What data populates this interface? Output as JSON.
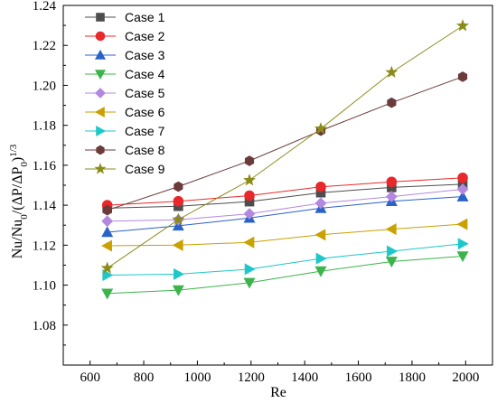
{
  "chart_data": {
    "type": "line",
    "title": "",
    "xlabel": "Re",
    "ylabel": "Nu/Nu₀/(ΔP/ΔP₀)¹ᐟ³",
    "ylabel_parts": {
      "a": "Nu/Nu",
      "a_sub": "0",
      "b": "/(ΔP/ΔP",
      "b_sub": "0",
      "c": ")",
      "c_sup": "1/3"
    },
    "xlim": [
      500,
      2100
    ],
    "ylim": [
      1.06,
      1.24
    ],
    "xticks": [
      600,
      800,
      1000,
      1200,
      1400,
      1600,
      1800,
      2000
    ],
    "yticks": [
      1.08,
      1.1,
      1.12,
      1.14,
      1.16,
      1.18,
      1.2,
      1.22,
      1.24
    ],
    "ytick_labels": [
      "1.08",
      "1.10",
      "1.12",
      "1.14",
      "1.16",
      "1.18",
      "1.20",
      "1.22",
      "1.24"
    ],
    "x": [
      664,
      929,
      1194,
      1460,
      1724,
      1989
    ],
    "legend_position": "top-left",
    "grid": false,
    "series": [
      {
        "name": "Case 1",
        "marker": "square",
        "color": "#4d4d4d",
        "values": [
          1.1385,
          1.1395,
          1.1418,
          1.1463,
          1.1489,
          1.1505
        ]
      },
      {
        "name": "Case 2",
        "marker": "circle",
        "color": "#e8282b",
        "values": [
          1.14,
          1.142,
          1.1448,
          1.1492,
          1.1517,
          1.1537
        ]
      },
      {
        "name": "Case 3",
        "marker": "triangle-up",
        "color": "#2b62c8",
        "values": [
          1.1265,
          1.1297,
          1.1336,
          1.1385,
          1.142,
          1.1443
        ]
      },
      {
        "name": "Case 4",
        "marker": "triangle-down",
        "color": "#3cb44b",
        "values": [
          1.0958,
          1.0975,
          1.1012,
          1.107,
          1.1118,
          1.1145
        ]
      },
      {
        "name": "Case 5",
        "marker": "diamond",
        "color": "#b388e0",
        "values": [
          1.132,
          1.1327,
          1.1357,
          1.141,
          1.1443,
          1.148
        ]
      },
      {
        "name": "Case 6",
        "marker": "triangle-left",
        "color": "#c9a100",
        "values": [
          1.1197,
          1.12,
          1.1214,
          1.1252,
          1.128,
          1.1305
        ]
      },
      {
        "name": "Case 7",
        "marker": "triangle-right",
        "color": "#1ec8c8",
        "values": [
          1.105,
          1.1055,
          1.108,
          1.1133,
          1.117,
          1.1207
        ]
      },
      {
        "name": "Case 8",
        "marker": "hexagon",
        "color": "#6b3a3a",
        "values": [
          1.1375,
          1.1493,
          1.1622,
          1.1773,
          1.1913,
          1.2043
        ]
      },
      {
        "name": "Case 9",
        "marker": "star",
        "color": "#8b8b1a",
        "values": [
          1.1085,
          1.1328,
          1.1525,
          1.1783,
          1.2065,
          1.2298
        ]
      }
    ]
  }
}
